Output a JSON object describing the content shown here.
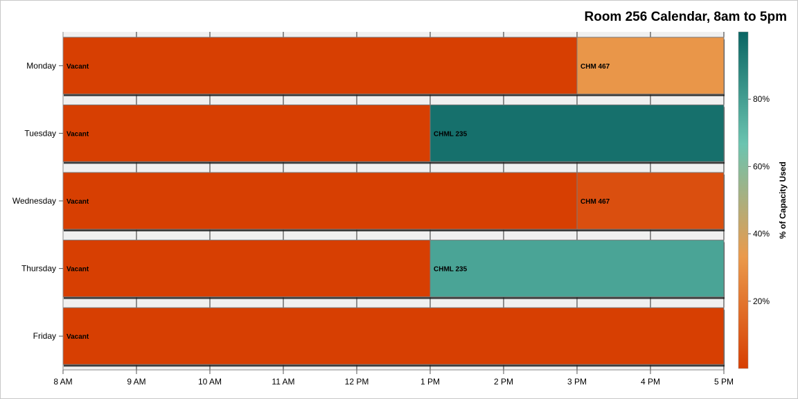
{
  "chart_data": {
    "type": "gantt",
    "title": "Room 256 Calendar, 8am to 5pm",
    "x_tick_labels": [
      "8 AM",
      "9 AM",
      "10 AM",
      "11 AM",
      "12 PM",
      "1 PM",
      "2 PM",
      "3 PM",
      "4 PM",
      "5 PM"
    ],
    "xlim": [
      8,
      17
    ],
    "categories": [
      "Monday",
      "Tuesday",
      "Wednesday",
      "Thursday",
      "Friday"
    ],
    "bars": [
      {
        "day": "Monday",
        "label": "Vacant",
        "start": 8,
        "end": 15,
        "capacity_pct": 0
      },
      {
        "day": "Monday",
        "label": "CHM 467",
        "start": 15,
        "end": 17,
        "capacity_pct": 32
      },
      {
        "day": "Tuesday",
        "label": "Vacant",
        "start": 8,
        "end": 13,
        "capacity_pct": 0
      },
      {
        "day": "Tuesday",
        "label": "CHML 235",
        "start": 13,
        "end": 17,
        "capacity_pct": 96
      },
      {
        "day": "Wednesday",
        "label": "Vacant",
        "start": 8,
        "end": 15,
        "capacity_pct": 0
      },
      {
        "day": "Wednesday",
        "label": "CHM 467",
        "start": 15,
        "end": 17,
        "capacity_pct": 6
      },
      {
        "day": "Thursday",
        "label": "Vacant",
        "start": 8,
        "end": 13,
        "capacity_pct": 0
      },
      {
        "day": "Thursday",
        "label": "CHML 235",
        "start": 13,
        "end": 17,
        "capacity_pct": 78
      },
      {
        "day": "Friday",
        "label": "Vacant",
        "start": 8,
        "end": 17,
        "capacity_pct": 0
      }
    ],
    "colorbar": {
      "label": "% of Capacity Used",
      "range": [
        0,
        100
      ],
      "tick_values": [
        20,
        40,
        60,
        80
      ],
      "tick_labels": [
        "20%",
        "40%",
        "60%",
        "80%"
      ],
      "colors": [
        "#D73F02",
        "#EA9A4C",
        "#6BC4B0",
        "#0A6563"
      ]
    },
    "grid": true,
    "legend": "right"
  }
}
